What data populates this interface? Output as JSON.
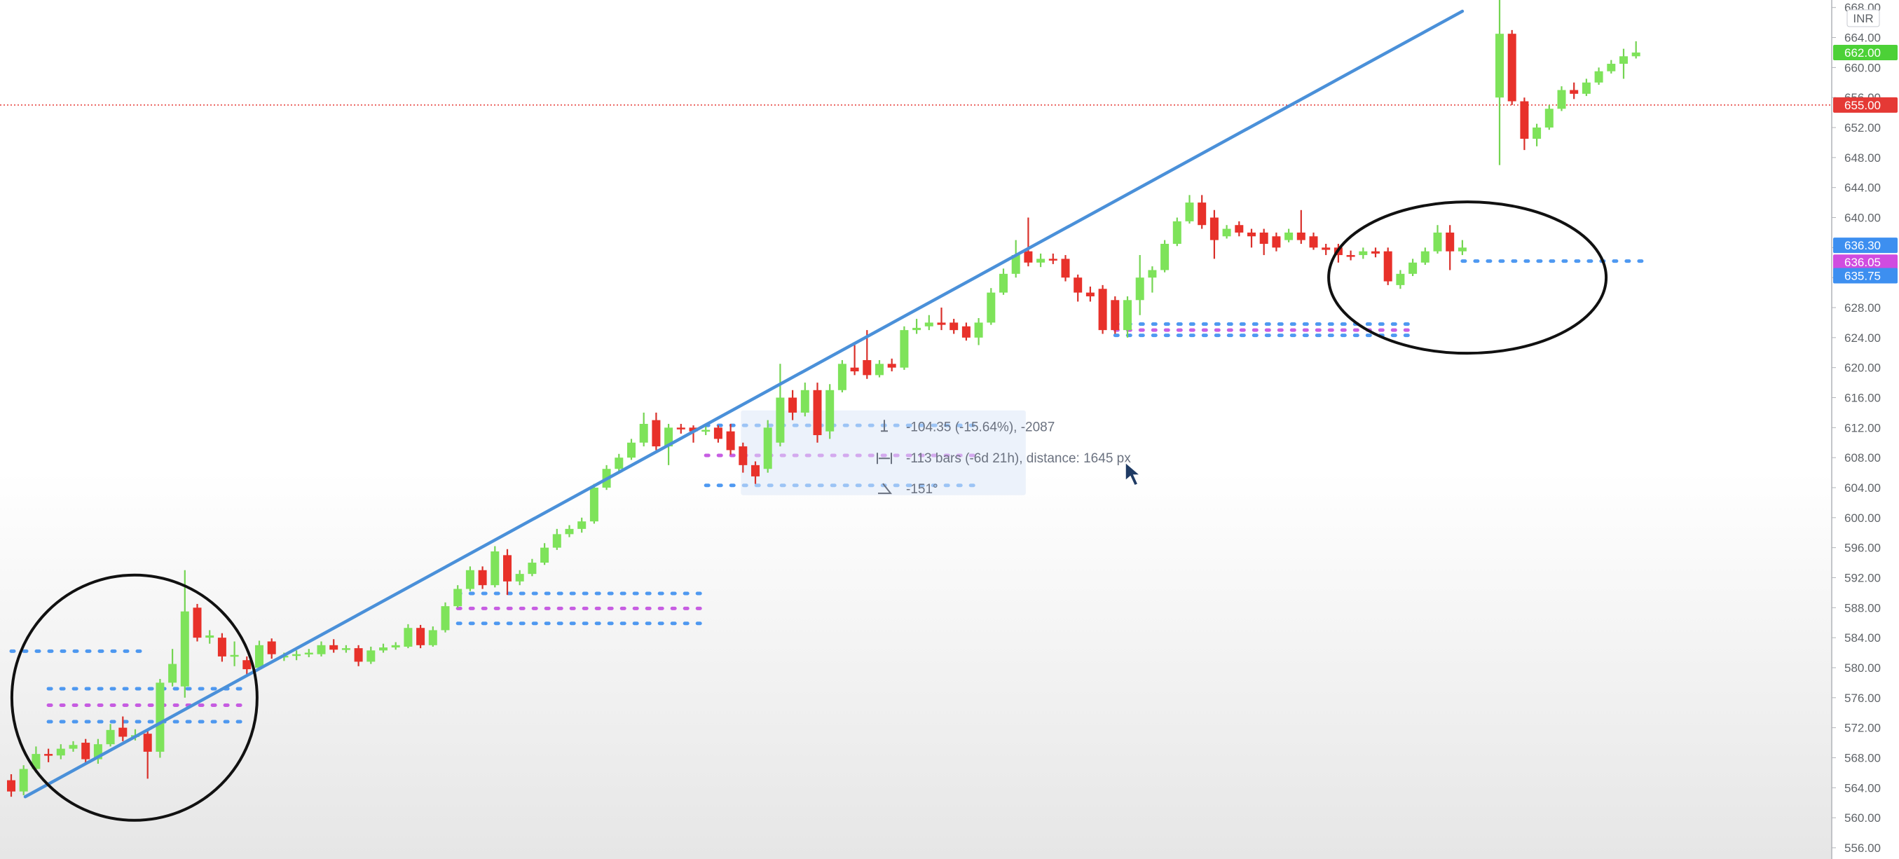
{
  "chart_data": {
    "type": "candlestick",
    "currency": "INR",
    "y_axis": {
      "ticks": [
        556,
        560,
        564,
        568,
        572,
        576,
        580,
        584,
        588,
        592,
        596,
        600,
        604,
        608,
        612,
        616,
        620,
        624,
        628,
        632,
        636,
        640,
        644,
        648,
        652,
        656,
        660,
        664,
        668
      ],
      "range": [
        554.5,
        669
      ]
    },
    "price_tags": [
      {
        "value": 662.0,
        "label": "662.00",
        "color": "#4cd137",
        "text_color": "#1b5e20"
      },
      {
        "value": 655.0,
        "label": "655.00",
        "color": "#e53935",
        "text_color": "#ffffff"
      },
      {
        "value": 636.3,
        "label": "636.30",
        "color": "#3d8ff0",
        "text_color": "#ffffff"
      },
      {
        "value": 634.05,
        "label": "636.05",
        "color": "#d04ce0",
        "text_color": "#ffffff"
      },
      {
        "value": 632.25,
        "label": "635.75",
        "color": "#3d8ff0",
        "text_color": "#ffffff"
      }
    ],
    "horizontal_line": {
      "value": 655.0,
      "color": "#e53935",
      "style": "dotted"
    },
    "candles": [
      {
        "o": 565.0,
        "c": 563.5,
        "h": 565.8,
        "l": 562.8
      },
      {
        "o": 563.5,
        "c": 566.5,
        "h": 567.0,
        "l": 563.0
      },
      {
        "o": 566.5,
        "c": 568.5,
        "h": 569.5,
        "l": 566.0
      },
      {
        "o": 568.5,
        "c": 568.3,
        "h": 569.2,
        "l": 567.4
      },
      {
        "o": 568.3,
        "c": 569.2,
        "h": 569.8,
        "l": 567.8
      },
      {
        "o": 569.2,
        "c": 569.7,
        "h": 570.2,
        "l": 568.8
      },
      {
        "o": 570.0,
        "c": 567.8,
        "h": 570.5,
        "l": 567.2
      },
      {
        "o": 567.8,
        "c": 569.8,
        "h": 570.5,
        "l": 567.2
      },
      {
        "o": 569.8,
        "c": 571.7,
        "h": 572.5,
        "l": 569.5
      },
      {
        "o": 572.0,
        "c": 570.8,
        "h": 573.5,
        "l": 570.2
      },
      {
        "o": 570.8,
        "c": 571.0,
        "h": 571.8,
        "l": 570.3
      },
      {
        "o": 571.2,
        "c": 568.8,
        "h": 571.8,
        "l": 565.2
      },
      {
        "o": 568.8,
        "c": 578.0,
        "h": 578.5,
        "l": 568.0
      },
      {
        "o": 578.0,
        "c": 580.5,
        "h": 582.5,
        "l": 577.5
      },
      {
        "o": 577.5,
        "c": 587.5,
        "h": 593.0,
        "l": 576.0
      },
      {
        "o": 588.0,
        "c": 584.0,
        "h": 588.5,
        "l": 583.5
      },
      {
        "o": 584.0,
        "c": 584.3,
        "h": 585.0,
        "l": 583.2
      },
      {
        "o": 584.0,
        "c": 581.5,
        "h": 584.6,
        "l": 580.8
      },
      {
        "o": 581.5,
        "c": 581.7,
        "h": 583.5,
        "l": 580.2
      },
      {
        "o": 581.0,
        "c": 579.8,
        "h": 581.5,
        "l": 579.0
      },
      {
        "o": 580.0,
        "c": 583.0,
        "h": 583.6,
        "l": 579.8
      },
      {
        "o": 583.5,
        "c": 581.8,
        "h": 583.9,
        "l": 581.2
      },
      {
        "o": 581.5,
        "c": 581.6,
        "h": 582.0,
        "l": 580.9
      },
      {
        "o": 581.6,
        "c": 581.8,
        "h": 582.3,
        "l": 581.0
      },
      {
        "o": 581.8,
        "c": 582.0,
        "h": 582.5,
        "l": 581.4
      },
      {
        "o": 581.8,
        "c": 583.0,
        "h": 583.5,
        "l": 581.5
      },
      {
        "o": 583.0,
        "c": 582.4,
        "h": 583.8,
        "l": 582.0
      },
      {
        "o": 582.4,
        "c": 582.6,
        "h": 583.0,
        "l": 582.0
      },
      {
        "o": 582.6,
        "c": 580.8,
        "h": 583.0,
        "l": 580.2
      },
      {
        "o": 580.8,
        "c": 582.3,
        "h": 582.8,
        "l": 580.5
      },
      {
        "o": 582.3,
        "c": 582.7,
        "h": 583.2,
        "l": 582.0
      },
      {
        "o": 582.7,
        "c": 583.0,
        "h": 583.4,
        "l": 582.4
      },
      {
        "o": 582.8,
        "c": 585.3,
        "h": 585.8,
        "l": 582.6
      },
      {
        "o": 585.3,
        "c": 583.0,
        "h": 585.7,
        "l": 582.6
      },
      {
        "o": 583.0,
        "c": 585.0,
        "h": 585.5,
        "l": 582.8
      },
      {
        "o": 585.0,
        "c": 588.2,
        "h": 588.7,
        "l": 584.7
      },
      {
        "o": 588.2,
        "c": 590.5,
        "h": 591.0,
        "l": 588.0
      },
      {
        "o": 590.5,
        "c": 593.0,
        "h": 593.5,
        "l": 590.2
      },
      {
        "o": 593.0,
        "c": 591.0,
        "h": 593.5,
        "l": 590.5
      },
      {
        "o": 591.0,
        "c": 595.5,
        "h": 596.2,
        "l": 590.7
      },
      {
        "o": 595.0,
        "c": 591.5,
        "h": 595.8,
        "l": 589.7
      },
      {
        "o": 591.5,
        "c": 592.5,
        "h": 593.0,
        "l": 591.0
      },
      {
        "o": 592.5,
        "c": 594.0,
        "h": 594.5,
        "l": 592.2
      },
      {
        "o": 594.0,
        "c": 596.0,
        "h": 596.6,
        "l": 593.7
      },
      {
        "o": 596.0,
        "c": 597.8,
        "h": 598.5,
        "l": 595.7
      },
      {
        "o": 597.8,
        "c": 598.5,
        "h": 599.0,
        "l": 597.4
      },
      {
        "o": 598.5,
        "c": 599.5,
        "h": 600.0,
        "l": 598.0
      },
      {
        "o": 599.5,
        "c": 604.0,
        "h": 604.5,
        "l": 599.2
      },
      {
        "o": 604.0,
        "c": 606.5,
        "h": 607.0,
        "l": 603.7
      },
      {
        "o": 606.5,
        "c": 608.0,
        "h": 608.5,
        "l": 606.2
      },
      {
        "o": 608.0,
        "c": 610.0,
        "h": 610.5,
        "l": 607.7
      },
      {
        "o": 610.0,
        "c": 612.5,
        "h": 614.0,
        "l": 609.5
      },
      {
        "o": 613.0,
        "c": 609.5,
        "h": 614.0,
        "l": 609.0
      },
      {
        "o": 609.5,
        "c": 612.0,
        "h": 612.5,
        "l": 607.0
      },
      {
        "o": 612.0,
        "c": 611.8,
        "h": 612.5,
        "l": 611.2
      },
      {
        "o": 612.0,
        "c": 611.5,
        "h": 612.3,
        "l": 610.0
      },
      {
        "o": 611.5,
        "c": 611.7,
        "h": 612.2,
        "l": 611.0
      },
      {
        "o": 612.0,
        "c": 610.5,
        "h": 612.3,
        "l": 610.0
      },
      {
        "o": 611.5,
        "c": 609.0,
        "h": 612.5,
        "l": 608.4
      },
      {
        "o": 609.5,
        "c": 607.0,
        "h": 610.0,
        "l": 606.0
      },
      {
        "o": 607.0,
        "c": 605.5,
        "h": 607.5,
        "l": 604.5
      },
      {
        "o": 606.5,
        "c": 612.0,
        "h": 613.0,
        "l": 606.0
      },
      {
        "o": 610.0,
        "c": 616.0,
        "h": 620.5,
        "l": 609.5
      },
      {
        "o": 616.0,
        "c": 614.0,
        "h": 617.0,
        "l": 613.0
      },
      {
        "o": 614.0,
        "c": 617.0,
        "h": 618.0,
        "l": 613.5
      },
      {
        "o": 617.0,
        "c": 611.0,
        "h": 618.0,
        "l": 610.0
      },
      {
        "o": 611.5,
        "c": 617.0,
        "h": 617.8,
        "l": 610.5
      },
      {
        "o": 617.0,
        "c": 620.5,
        "h": 621.0,
        "l": 616.7
      },
      {
        "o": 620.0,
        "c": 619.5,
        "h": 623.0,
        "l": 619.0
      },
      {
        "o": 621.0,
        "c": 619.0,
        "h": 625.0,
        "l": 618.5
      },
      {
        "o": 619.0,
        "c": 620.5,
        "h": 621.0,
        "l": 618.7
      },
      {
        "o": 620.5,
        "c": 620.0,
        "h": 621.2,
        "l": 619.5
      },
      {
        "o": 620.0,
        "c": 625.0,
        "h": 625.5,
        "l": 619.7
      },
      {
        "o": 625.0,
        "c": 625.3,
        "h": 626.5,
        "l": 624.5
      },
      {
        "o": 625.5,
        "c": 626.0,
        "h": 627.0,
        "l": 625.0
      },
      {
        "o": 626.0,
        "c": 625.7,
        "h": 628.0,
        "l": 625.0
      },
      {
        "o": 626.0,
        "c": 625.0,
        "h": 626.5,
        "l": 624.5
      },
      {
        "o": 625.5,
        "c": 624.0,
        "h": 626.0,
        "l": 623.6
      },
      {
        "o": 624.0,
        "c": 626.0,
        "h": 626.6,
        "l": 623.0
      },
      {
        "o": 626.0,
        "c": 630.0,
        "h": 630.6,
        "l": 625.7
      },
      {
        "o": 630.0,
        "c": 632.5,
        "h": 633.2,
        "l": 629.7
      },
      {
        "o": 632.5,
        "c": 635.0,
        "h": 637.0,
        "l": 632.0
      },
      {
        "o": 635.5,
        "c": 634.0,
        "h": 640.0,
        "l": 633.5
      },
      {
        "o": 634.0,
        "c": 634.5,
        "h": 635.2,
        "l": 633.4
      },
      {
        "o": 634.5,
        "c": 634.3,
        "h": 635.2,
        "l": 633.8
      },
      {
        "o": 634.5,
        "c": 632.0,
        "h": 635.0,
        "l": 631.5
      },
      {
        "o": 632.0,
        "c": 630.0,
        "h": 632.4,
        "l": 628.8
      },
      {
        "o": 630.0,
        "c": 629.5,
        "h": 630.8,
        "l": 628.8
      },
      {
        "o": 630.5,
        "c": 625.0,
        "h": 631.0,
        "l": 624.5
      },
      {
        "o": 629.0,
        "c": 625.0,
        "h": 629.5,
        "l": 624.5
      },
      {
        "o": 625.0,
        "c": 629.0,
        "h": 629.5,
        "l": 624.0
      },
      {
        "o": 629.0,
        "c": 632.0,
        "h": 635.0,
        "l": 627.0
      },
      {
        "o": 632.0,
        "c": 633.0,
        "h": 633.5,
        "l": 630.0
      },
      {
        "o": 633.0,
        "c": 636.5,
        "h": 637.0,
        "l": 632.7
      },
      {
        "o": 636.5,
        "c": 639.5,
        "h": 640.0,
        "l": 636.2
      },
      {
        "o": 639.5,
        "c": 642.0,
        "h": 643.0,
        "l": 639.2
      },
      {
        "o": 642.0,
        "c": 639.0,
        "h": 643.0,
        "l": 638.5
      },
      {
        "o": 640.0,
        "c": 637.0,
        "h": 641.0,
        "l": 634.5
      },
      {
        "o": 637.5,
        "c": 638.5,
        "h": 639.0,
        "l": 637.2
      },
      {
        "o": 639.0,
        "c": 638.0,
        "h": 639.5,
        "l": 637.5
      },
      {
        "o": 638.0,
        "c": 637.5,
        "h": 638.5,
        "l": 636.0
      },
      {
        "o": 638.0,
        "c": 636.5,
        "h": 638.5,
        "l": 635.0
      },
      {
        "o": 637.5,
        "c": 636.0,
        "h": 638.0,
        "l": 635.5
      },
      {
        "o": 637.0,
        "c": 638.0,
        "h": 638.5,
        "l": 636.7
      },
      {
        "o": 638.0,
        "c": 637.0,
        "h": 641.0,
        "l": 636.5
      },
      {
        "o": 637.5,
        "c": 636.0,
        "h": 638.0,
        "l": 635.7
      },
      {
        "o": 636.0,
        "c": 635.7,
        "h": 636.5,
        "l": 635.0
      },
      {
        "o": 636.0,
        "c": 635.0,
        "h": 636.5,
        "l": 634.0
      },
      {
        "o": 635.0,
        "c": 634.8,
        "h": 635.6,
        "l": 634.3
      },
      {
        "o": 635.0,
        "c": 635.5,
        "h": 636.0,
        "l": 634.5
      },
      {
        "o": 635.5,
        "c": 635.2,
        "h": 636.0,
        "l": 634.7
      },
      {
        "o": 635.5,
        "c": 631.5,
        "h": 636.0,
        "l": 631.0
      },
      {
        "o": 631.0,
        "c": 632.5,
        "h": 633.0,
        "l": 630.5
      },
      {
        "o": 632.5,
        "c": 634.0,
        "h": 634.5,
        "l": 632.2
      },
      {
        "o": 634.0,
        "c": 635.5,
        "h": 636.0,
        "l": 633.7
      },
      {
        "o": 635.5,
        "c": 638.0,
        "h": 639.0,
        "l": 635.2
      },
      {
        "o": 638.0,
        "c": 635.5,
        "h": 639.0,
        "l": 633.0
      },
      {
        "o": 635.5,
        "c": 636.0,
        "h": 637.0,
        "l": 635.0
      },
      {
        "o": 656.0,
        "c": 664.5,
        "h": 669.0,
        "l": 647.0
      },
      {
        "o": 664.5,
        "c": 655.5,
        "h": 665.0,
        "l": 655.0
      },
      {
        "o": 655.5,
        "c": 650.5,
        "h": 656.0,
        "l": 649.0
      },
      {
        "o": 650.5,
        "c": 652.0,
        "h": 652.5,
        "l": 649.5
      },
      {
        "o": 652.0,
        "c": 654.5,
        "h": 655.0,
        "l": 651.7
      },
      {
        "o": 654.5,
        "c": 657.0,
        "h": 657.5,
        "l": 654.2
      },
      {
        "o": 657.0,
        "c": 656.5,
        "h": 658.0,
        "l": 655.8
      },
      {
        "o": 656.5,
        "c": 658.0,
        "h": 658.5,
        "l": 656.2
      },
      {
        "o": 658.0,
        "c": 659.5,
        "h": 660.0,
        "l": 657.7
      },
      {
        "o": 659.5,
        "c": 660.5,
        "h": 661.0,
        "l": 659.2
      },
      {
        "o": 660.5,
        "c": 661.5,
        "h": 662.5,
        "l": 658.5
      },
      {
        "o": 661.5,
        "c": 662.0,
        "h": 663.5,
        "l": 661.2
      }
    ],
    "gap_after_index": 117,
    "trendline": {
      "from": {
        "index": 0,
        "price": 562.8
      },
      "to": {
        "index": 117,
        "price": 667.5
      },
      "color": "#4a90d9"
    },
    "level_groups": [
      {
        "start": 3,
        "end": 19,
        "levels": [
          {
            "price": 577.2,
            "color": "#3d8ff0"
          },
          {
            "price": 575.0,
            "color": "#c24de0"
          },
          {
            "price": 572.8,
            "color": "#3d8ff0"
          }
        ]
      },
      {
        "start": 36,
        "end": 56,
        "levels": [
          {
            "price": 589.9,
            "color": "#3d8ff0"
          },
          {
            "price": 587.9,
            "color": "#c24de0"
          },
          {
            "price": 585.9,
            "color": "#3d8ff0"
          }
        ]
      },
      {
        "start": 56,
        "end": 78,
        "levels": [
          {
            "price": 612.3,
            "color": "#3d8ff0"
          },
          {
            "price": 608.3,
            "color": "#c24de0"
          },
          {
            "price": 604.3,
            "color": "#3d8ff0"
          }
        ]
      },
      {
        "start": 89,
        "end": 113,
        "levels": [
          {
            "price": 625.8,
            "color": "#3d8ff0"
          },
          {
            "price": 625.0,
            "color": "#c24de0"
          },
          {
            "price": 624.3,
            "color": "#3d8ff0"
          }
        ]
      },
      {
        "start": 0,
        "end": 11,
        "levels": [
          {
            "price": 582.2,
            "color": "#3d8ff0"
          }
        ]
      },
      {
        "start": 117,
        "end": 130,
        "levels": [
          {
            "price": 634.2,
            "color": "#3d8ff0"
          }
        ]
      }
    ],
    "circles": [
      {
        "center_index": 7,
        "center_price": 576.0
      },
      {
        "center_index": 113,
        "center_price": 632.0
      }
    ],
    "measure_tooltip": {
      "lines": [
        {
          "icon": "price-range-icon",
          "text": "-104.35 (-15.64%), -2087"
        },
        {
          "icon": "bars-range-icon",
          "text": "-113 bars (-6d 21h), distance: 1645 px"
        },
        {
          "icon": "angle-icon",
          "text": "-151°"
        }
      ]
    }
  }
}
